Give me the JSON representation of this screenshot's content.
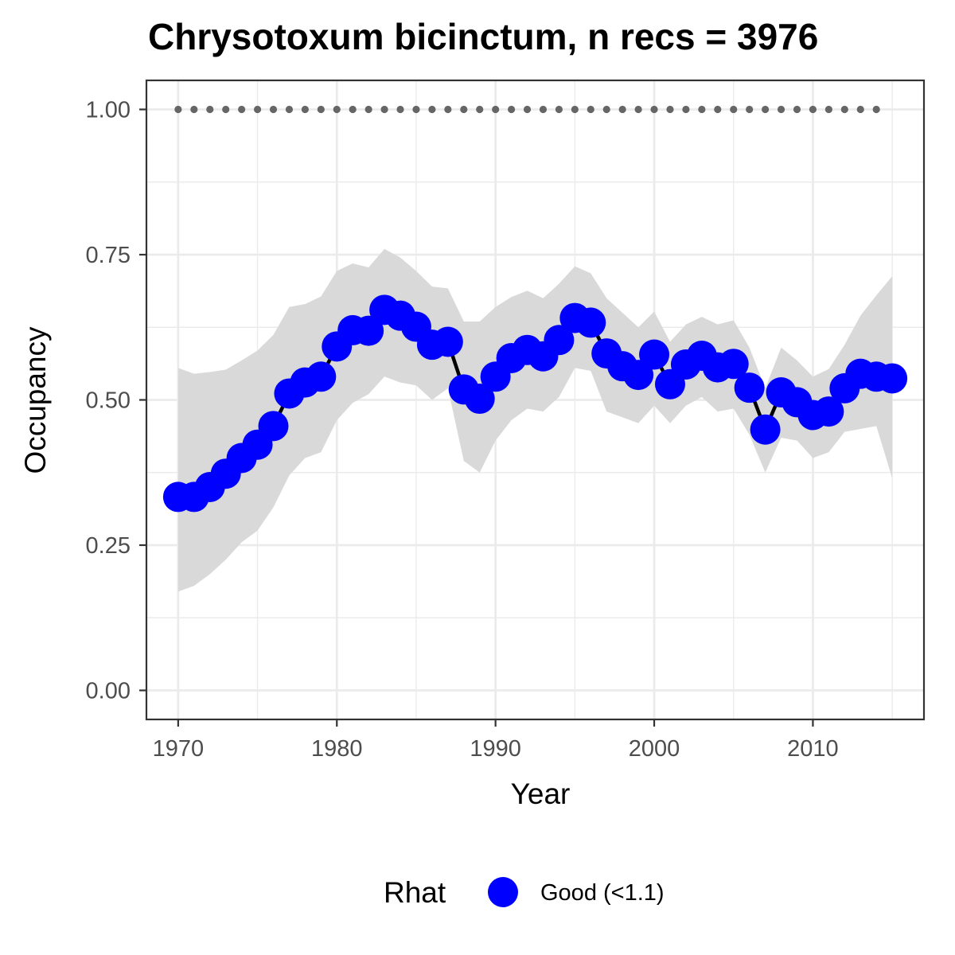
{
  "chart_data": {
    "type": "line",
    "title": "Chrysotoxum bicinctum, n recs = 3976",
    "xlabel": "Year",
    "ylabel": "Occupancy",
    "xlim": [
      1968,
      2017
    ],
    "ylim": [
      -0.05,
      1.05
    ],
    "x_ticks": [
      1970,
      1980,
      1990,
      2000,
      2010
    ],
    "y_ticks": [
      0.0,
      0.25,
      0.5,
      0.75,
      1.0
    ],
    "y_tick_labels": [
      "0.00",
      "0.25",
      "0.50",
      "0.75",
      "1.00"
    ],
    "grid": true,
    "legend": {
      "title": "Rhat",
      "position": "bottom",
      "entries": [
        {
          "label": "Good (<1.1)",
          "color": "#0000ff"
        }
      ]
    },
    "colors": {
      "points": "#0000ff",
      "line": "#000000",
      "ribbon": "#d9d9d9",
      "reference": "#666666",
      "grid": "#ebebeb",
      "panel_border": "#333333"
    },
    "x": [
      1970,
      1971,
      1972,
      1973,
      1974,
      1975,
      1976,
      1977,
      1978,
      1979,
      1980,
      1981,
      1982,
      1983,
      1984,
      1985,
      1986,
      1987,
      1988,
      1989,
      1990,
      1991,
      1992,
      1993,
      1994,
      1995,
      1996,
      1997,
      1998,
      1999,
      2000,
      2001,
      2002,
      2003,
      2004,
      2005,
      2006,
      2007,
      2008,
      2009,
      2010,
      2011,
      2012,
      2013,
      2014,
      2015
    ],
    "series": [
      {
        "name": "Good (<1.1)",
        "values": [
          0.333,
          0.333,
          0.35,
          0.373,
          0.4,
          0.423,
          0.455,
          0.511,
          0.53,
          0.54,
          0.592,
          0.62,
          0.619,
          0.655,
          0.645,
          0.626,
          0.595,
          0.6,
          0.518,
          0.502,
          0.54,
          0.572,
          0.586,
          0.575,
          0.603,
          0.641,
          0.633,
          0.58,
          0.558,
          0.543,
          0.578,
          0.527,
          0.561,
          0.576,
          0.556,
          0.562,
          0.521,
          0.449,
          0.513,
          0.496,
          0.474,
          0.48,
          0.52,
          0.545,
          0.54,
          0.537
        ],
        "lower": [
          0.17,
          0.18,
          0.2,
          0.225,
          0.255,
          0.275,
          0.315,
          0.37,
          0.4,
          0.41,
          0.465,
          0.495,
          0.51,
          0.54,
          0.53,
          0.525,
          0.5,
          0.52,
          0.395,
          0.375,
          0.43,
          0.465,
          0.485,
          0.48,
          0.505,
          0.555,
          0.55,
          0.48,
          0.47,
          0.46,
          0.49,
          0.46,
          0.49,
          0.505,
          0.48,
          0.485,
          0.44,
          0.375,
          0.435,
          0.43,
          0.4,
          0.41,
          0.445,
          0.45,
          0.455,
          0.365
        ],
        "upper": [
          0.555,
          0.545,
          0.548,
          0.552,
          0.568,
          0.585,
          0.612,
          0.66,
          0.665,
          0.678,
          0.722,
          0.735,
          0.728,
          0.76,
          0.745,
          0.722,
          0.695,
          0.692,
          0.635,
          0.635,
          0.66,
          0.677,
          0.688,
          0.675,
          0.7,
          0.73,
          0.718,
          0.675,
          0.65,
          0.625,
          0.652,
          0.6,
          0.63,
          0.643,
          0.63,
          0.637,
          0.59,
          0.52,
          0.59,
          0.568,
          0.54,
          0.553,
          0.595,
          0.645,
          0.68,
          0.713
        ]
      }
    ],
    "reference_line": {
      "x": [
        1970,
        1971,
        1972,
        1973,
        1974,
        1975,
        1976,
        1977,
        1978,
        1979,
        1980,
        1981,
        1982,
        1983,
        1984,
        1985,
        1986,
        1987,
        1988,
        1989,
        1990,
        1991,
        1992,
        1993,
        1994,
        1995,
        1996,
        1997,
        1998,
        1999,
        2000,
        2001,
        2002,
        2003,
        2004,
        2005,
        2006,
        2007,
        2008,
        2009,
        2010,
        2011,
        2012,
        2013,
        2014
      ],
      "value": 1.0,
      "style": "dotted"
    }
  }
}
